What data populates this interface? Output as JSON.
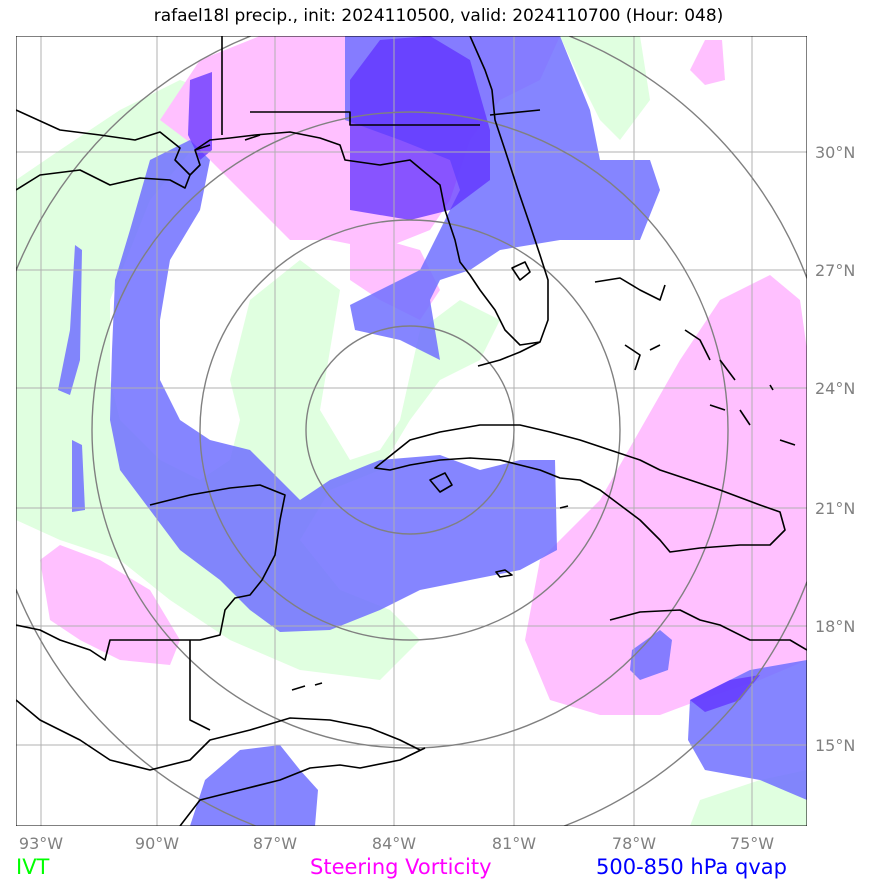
{
  "title": "rafael18l precip., init: 2024110500, valid: 2024110700 (Hour: 048)",
  "lon_labels": [
    "93°W",
    "90°W",
    "87°W",
    "84°W",
    "81°W",
    "78°W",
    "75°W"
  ],
  "lat_labels": [
    "30°N",
    "27°N",
    "24°N",
    "21°N",
    "18°N",
    "15°N"
  ],
  "legend": {
    "ivt": "IVT",
    "vorticity": "Steering Vorticity",
    "qvap": "500-850 hPa qvap"
  },
  "colors": {
    "ivt": "#00ff00",
    "ivt_fill": "#e0ffe0",
    "vorticity": "#ff00ff",
    "vorticity_fill": "#ffc0ff",
    "qvap": "#0000ff",
    "qvap_fill": "#7070ff",
    "grid": "#b0b0b0",
    "range_rings": "#808080",
    "coastline": "#000000"
  }
}
